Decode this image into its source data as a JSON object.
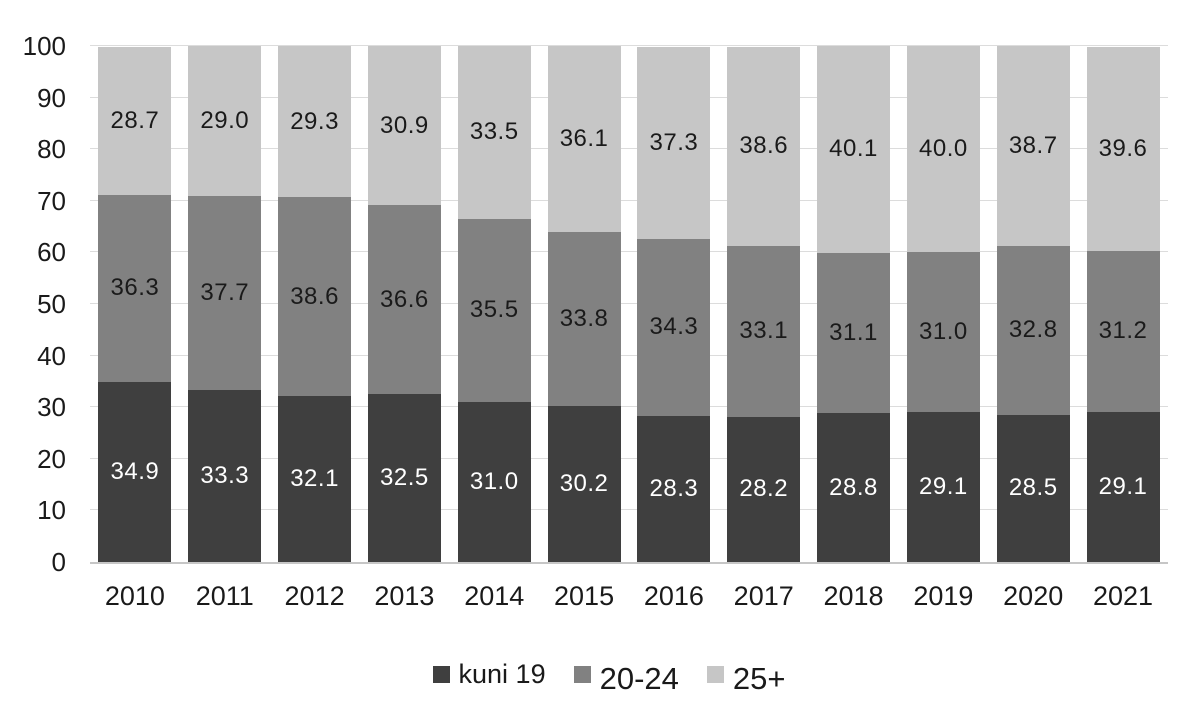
{
  "chart_data": {
    "type": "bar",
    "subtype": "stacked-column",
    "title": "",
    "categories": [
      "2010",
      "2011",
      "2012",
      "2013",
      "2014",
      "2015",
      "2016",
      "2017",
      "2018",
      "2019",
      "2020",
      "2021"
    ],
    "series": [
      {
        "name": "kuni 19",
        "color": "#3f3f3f",
        "label_color": "#ffffff",
        "values": [
          34.9,
          33.3,
          32.1,
          32.5,
          31.0,
          30.2,
          28.3,
          28.2,
          28.8,
          29.1,
          28.5,
          29.1
        ]
      },
      {
        "name": "20-24",
        "color": "#818181",
        "label_color": "#1a1a1a",
        "values": [
          36.3,
          37.7,
          38.6,
          36.6,
          35.5,
          33.8,
          34.3,
          33.1,
          31.1,
          31.0,
          32.8,
          31.2
        ]
      },
      {
        "name": "25+",
        "color": "#c6c6c6",
        "label_color": "#1a1a1a",
        "values": [
          28.7,
          29.0,
          29.3,
          30.9,
          33.5,
          36.1,
          37.3,
          38.6,
          40.1,
          40.0,
          38.7,
          39.6
        ]
      }
    ],
    "xlabel": "",
    "ylabel": "",
    "ylim": [
      0,
      100
    ],
    "yticks": [
      0,
      10,
      20,
      30,
      40,
      50,
      60,
      70,
      80,
      90,
      100
    ],
    "grid": "horizontal",
    "gridline_color": "#dcdcdc",
    "axis_line_color": "#c6c6c6",
    "background_color": "#ffffff",
    "text_color": "#1a1a1a",
    "value_decimals": 1,
    "legend_position": "bottom",
    "legend": [
      "kuni 19",
      "20-24",
      "25+"
    ]
  }
}
